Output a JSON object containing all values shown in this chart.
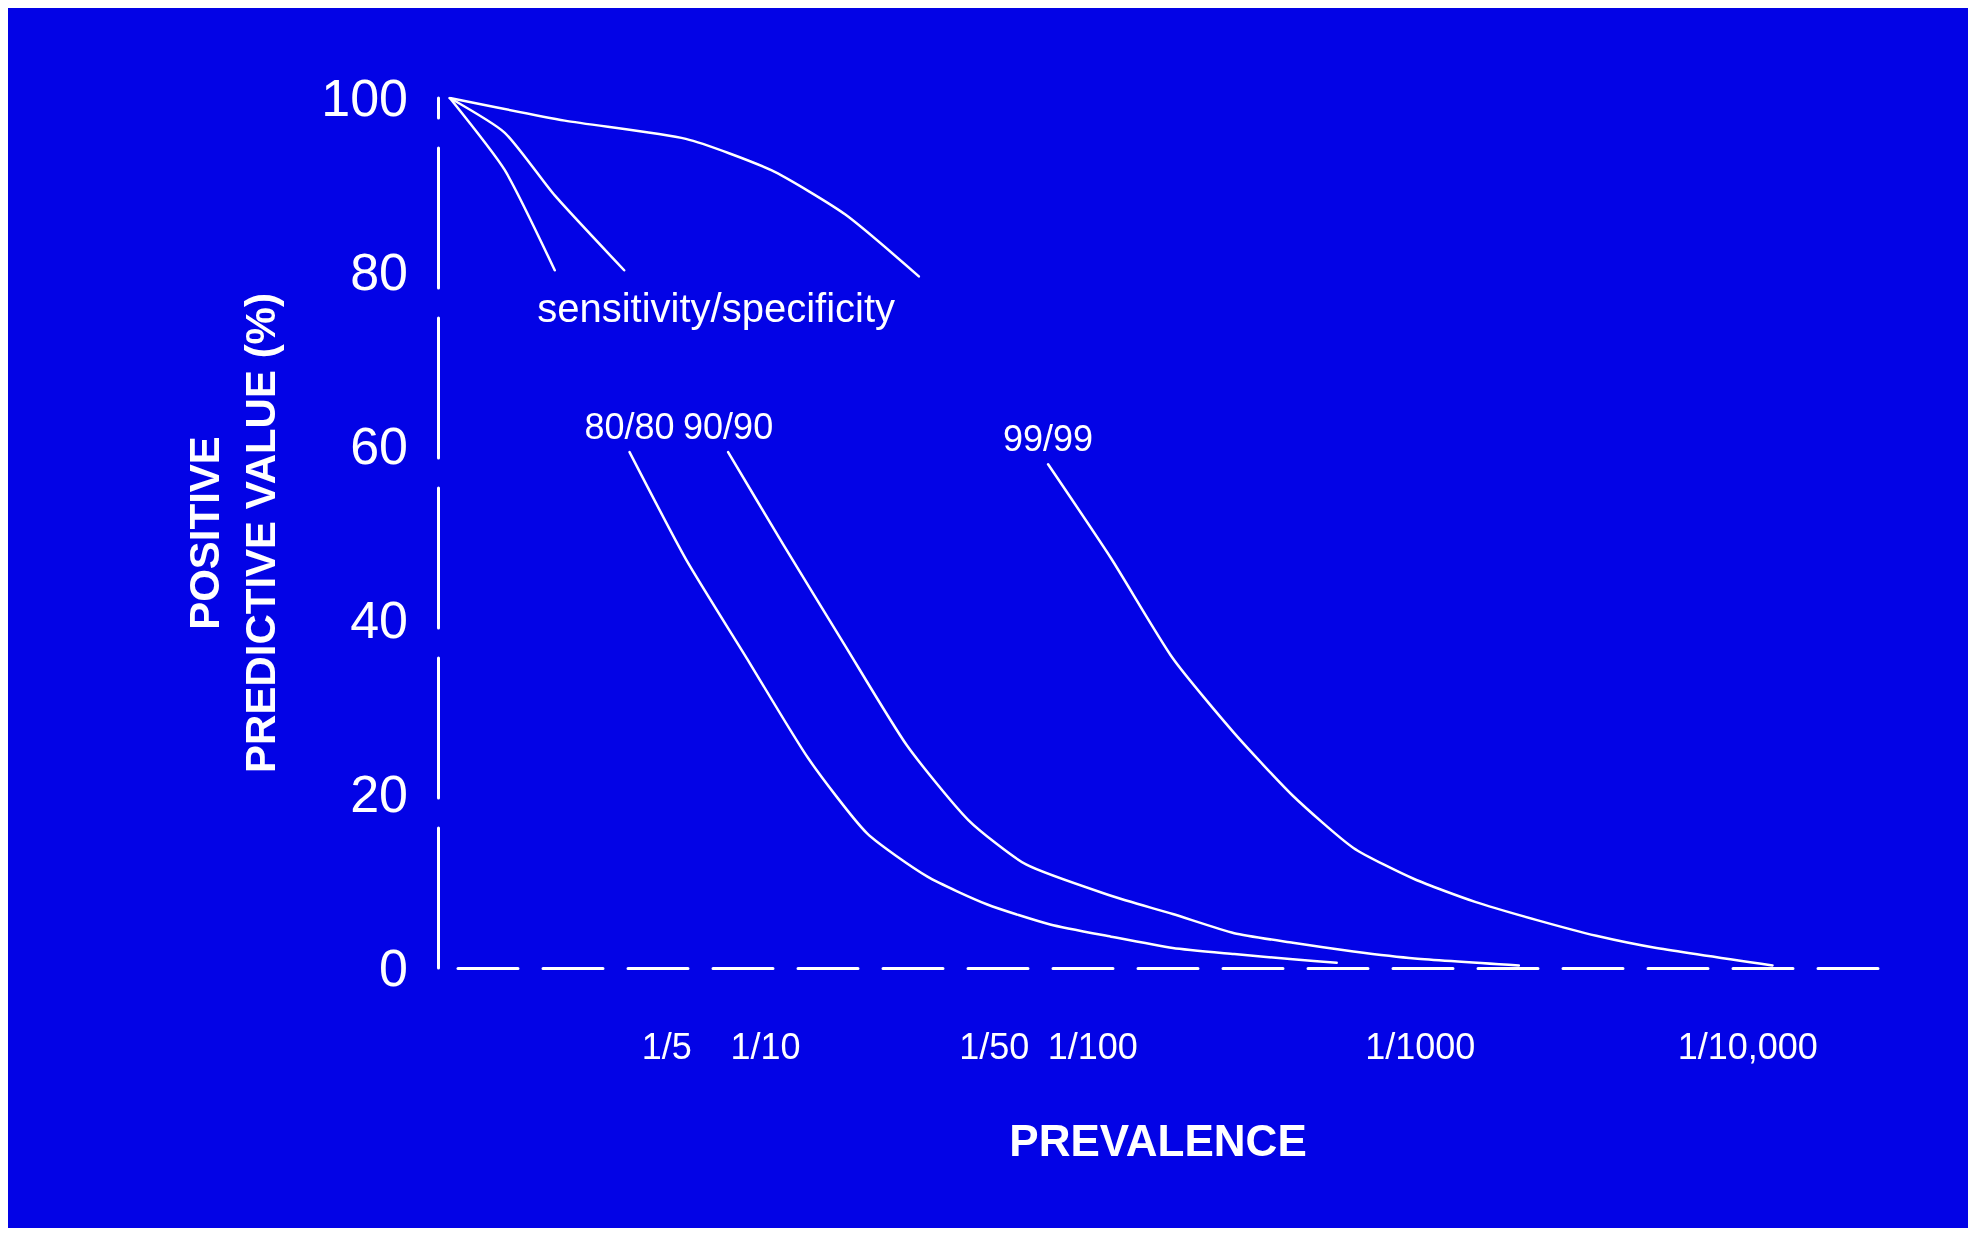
{
  "chart_data": {
    "type": "line",
    "xlabel": "PREVALENCE",
    "ylabel": "POSITIVE\nPREDICTIVE VALUE (%)",
    "log": "x",
    "xlim": [
      1,
      4e-05
    ],
    "xticks": [
      {
        "value": 0.2,
        "label": "1/5"
      },
      {
        "value": 0.1,
        "label": "1/10"
      },
      {
        "value": 0.02,
        "label": "1/50"
      },
      {
        "value": 0.01,
        "label": "1/100"
      },
      {
        "value": 0.001,
        "label": "1/1000"
      },
      {
        "value": 0.0001,
        "label": "1/10,000"
      }
    ],
    "ylim": [
      0,
      100
    ],
    "yticks": [
      0,
      20,
      40,
      60,
      80,
      100
    ],
    "grid": false,
    "legend": false,
    "marker": "none",
    "line_style": "solid",
    "annotations": [
      "sensitivity/specificity"
    ],
    "series": [
      {
        "name": "80/80",
        "color": "#ffffff",
        "x": [
          0.92,
          0.625,
          0.44,
          0.3,
          0.26,
          0.175,
          0.114,
          0.074,
          0.049,
          0.032,
          0.021,
          0.0135,
          0.0088,
          0.0057,
          0.0037,
          0.00245,
          0.0018
        ],
        "values": [
          100,
          91.7,
          80.2,
          null,
          59.3,
          47,
          35.6,
          24.1,
          15.5,
          10.5,
          7.3,
          5,
          3.6,
          2.3,
          1.6,
          1,
          0.6
        ]
      },
      {
        "name": "90/90",
        "color": "#ffffff",
        "x": [
          0.92,
          0.625,
          0.44,
          0.27,
          0.16,
          0.13,
          0.088,
          0.057,
          0.037,
          0.024,
          0.016,
          0.0088,
          0.0057,
          0.0037,
          0.00245,
          0.0016,
          0.00104,
          0.0005
        ],
        "values": [
          100,
          96,
          88.8,
          80.2,
          null,
          59.3,
          48.6,
          37,
          25.6,
          17,
          11.9,
          8.3,
          6.2,
          4,
          2.9,
          1.9,
          1.1,
          0.3
        ]
      },
      {
        "name": "99/99",
        "color": "#ffffff",
        "x": [
          0.92,
          0.41,
          0.175,
          0.096,
          0.057,
          0.034,
          0.018,
          0.0137,
          0.0088,
          0.0057,
          0.0037,
          0.00245,
          0.0016,
          0.00104,
          0.00068,
          0.00044,
          0.00029,
          0.00019,
          8.4e-05
        ],
        "values": [
          100,
          97.4,
          95.3,
          91.7,
          86.6,
          79.5,
          null,
          57.9,
          47.1,
          35.6,
          27,
          19.8,
          13.8,
          10.2,
          7.6,
          5.5,
          3.7,
          2.3,
          0.3
        ]
      }
    ]
  }
}
